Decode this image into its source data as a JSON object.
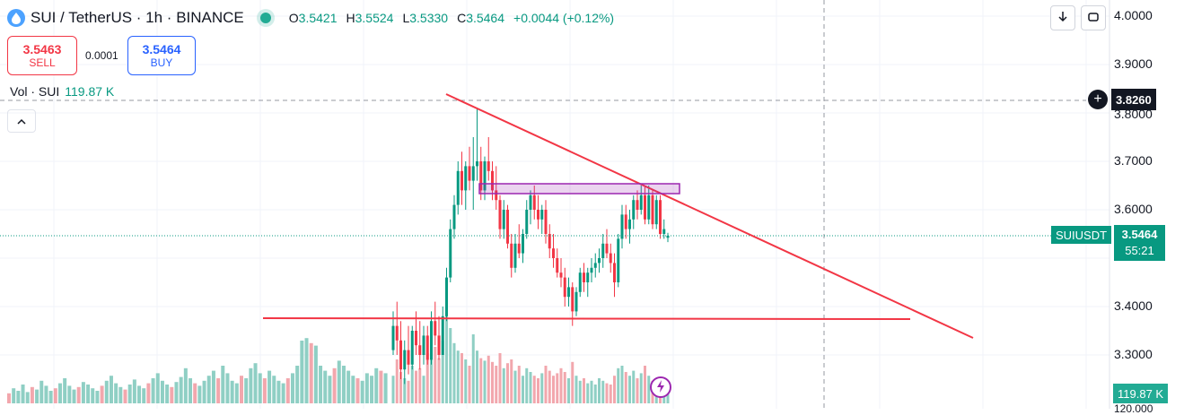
{
  "header": {
    "symbol": "SUI / TetherUS · 1h · BINANCE",
    "ohlc": [
      {
        "k": "O",
        "v": "3.5421"
      },
      {
        "k": "H",
        "v": "3.5524"
      },
      {
        "k": "L",
        "v": "3.5330"
      },
      {
        "k": "C",
        "v": "3.5464"
      }
    ],
    "change": "+0.0044 (+0.12%)"
  },
  "trade": {
    "sell_price": "3.5463",
    "sell_label": "SELL",
    "spread": "0.0001",
    "buy_price": "3.5464",
    "buy_label": "BUY"
  },
  "volume": {
    "label": "Vol · SUI",
    "value": "119.87 K"
  },
  "price_scale": {
    "labels": [
      "4.0000",
      "3.9000",
      "3.8000",
      "3.7000",
      "3.6000",
      "3.4000",
      "3.3000"
    ],
    "crosshair_price": "3.8260",
    "current_price": "3.5464",
    "countdown": "55:21",
    "symbol_tag": "SUIUSDT",
    "volume_tag": "119.87 K",
    "partial_bottom": "120.000"
  },
  "colors": {
    "up": "#089981",
    "down": "#f23645",
    "up_vol": "#8fcfc4",
    "down_vol": "#f2a7ad",
    "trendline": "#f23645",
    "zone": "#9c27b0"
  },
  "icons": {
    "download": "download-icon",
    "fullscreen": "fullscreen-icon",
    "collapse": "chevron-up-icon",
    "add": "plus-circle-icon",
    "bolt": "lightning-icon"
  },
  "chart_data": {
    "type": "candlestick",
    "symbol": "SUIUSDT",
    "interval": "1h",
    "ylim": [
      3.22,
      4.05
    ],
    "candles": [
      [
        3.31,
        3.39,
        3.3,
        3.36
      ],
      [
        3.36,
        3.41,
        3.3,
        3.33
      ],
      [
        3.33,
        3.37,
        3.25,
        3.27
      ],
      [
        3.27,
        3.33,
        3.24,
        3.31
      ],
      [
        3.31,
        3.36,
        3.26,
        3.28
      ],
      [
        3.28,
        3.36,
        3.27,
        3.35
      ],
      [
        3.35,
        3.39,
        3.3,
        3.32
      ],
      [
        3.32,
        3.37,
        3.27,
        3.3
      ],
      [
        3.3,
        3.36,
        3.28,
        3.34
      ],
      [
        3.34,
        3.36,
        3.28,
        3.29
      ],
      [
        3.29,
        3.39,
        3.28,
        3.37
      ],
      [
        3.37,
        3.41,
        3.32,
        3.34
      ],
      [
        3.34,
        3.38,
        3.29,
        3.3
      ],
      [
        3.3,
        3.4,
        3.3,
        3.38
      ],
      [
        3.38,
        3.48,
        3.37,
        3.46
      ],
      [
        3.46,
        3.58,
        3.45,
        3.56
      ],
      [
        3.56,
        3.63,
        3.54,
        3.61
      ],
      [
        3.61,
        3.7,
        3.59,
        3.68
      ],
      [
        3.68,
        3.72,
        3.61,
        3.64
      ],
      [
        3.64,
        3.7,
        3.6,
        3.69
      ],
      [
        3.69,
        3.73,
        3.64,
        3.66
      ],
      [
        3.66,
        3.75,
        3.6,
        3.69
      ],
      [
        3.69,
        3.81,
        3.66,
        3.7
      ],
      [
        3.7,
        3.73,
        3.62,
        3.64
      ],
      [
        3.64,
        3.71,
        3.62,
        3.7
      ],
      [
        3.7,
        3.75,
        3.66,
        3.68
      ],
      [
        3.68,
        3.7,
        3.62,
        3.64
      ],
      [
        3.64,
        3.69,
        3.6,
        3.62
      ],
      [
        3.62,
        3.63,
        3.54,
        3.56
      ],
      [
        3.56,
        3.62,
        3.54,
        3.6
      ],
      [
        3.6,
        3.61,
        3.52,
        3.53
      ],
      [
        3.53,
        3.55,
        3.46,
        3.48
      ],
      [
        3.48,
        3.55,
        3.47,
        3.53
      ],
      [
        3.53,
        3.57,
        3.5,
        3.51
      ],
      [
        3.51,
        3.56,
        3.49,
        3.55
      ],
      [
        3.55,
        3.62,
        3.54,
        3.6
      ],
      [
        3.6,
        3.64,
        3.57,
        3.63
      ],
      [
        3.63,
        3.65,
        3.58,
        3.6
      ],
      [
        3.6,
        3.63,
        3.56,
        3.58
      ],
      [
        3.58,
        3.61,
        3.55,
        3.6
      ],
      [
        3.6,
        3.62,
        3.53,
        3.55
      ],
      [
        3.55,
        3.57,
        3.5,
        3.52
      ],
      [
        3.52,
        3.55,
        3.48,
        3.5
      ],
      [
        3.5,
        3.52,
        3.46,
        3.47
      ],
      [
        3.47,
        3.5,
        3.44,
        3.46
      ],
      [
        3.46,
        3.48,
        3.4,
        3.42
      ],
      [
        3.42,
        3.46,
        3.4,
        3.44
      ],
      [
        3.44,
        3.45,
        3.36,
        3.39
      ],
      [
        3.39,
        3.44,
        3.38,
        3.43
      ],
      [
        3.43,
        3.48,
        3.42,
        3.47
      ],
      [
        3.47,
        3.49,
        3.43,
        3.45
      ],
      [
        3.45,
        3.48,
        3.42,
        3.47
      ],
      [
        3.47,
        3.5,
        3.45,
        3.48
      ],
      [
        3.48,
        3.51,
        3.46,
        3.49
      ],
      [
        3.49,
        3.52,
        3.47,
        3.5
      ],
      [
        3.5,
        3.55,
        3.48,
        3.53
      ],
      [
        3.53,
        3.56,
        3.5,
        3.51
      ],
      [
        3.51,
        3.53,
        3.47,
        3.49
      ],
      [
        3.49,
        3.51,
        3.42,
        3.45
      ],
      [
        3.45,
        3.55,
        3.44,
        3.54
      ],
      [
        3.54,
        3.61,
        3.52,
        3.59
      ],
      [
        3.59,
        3.61,
        3.54,
        3.56
      ],
      [
        3.56,
        3.6,
        3.53,
        3.58
      ],
      [
        3.58,
        3.63,
        3.56,
        3.62
      ],
      [
        3.62,
        3.64,
        3.58,
        3.6
      ],
      [
        3.6,
        3.65,
        3.59,
        3.63
      ],
      [
        3.63,
        3.65,
        3.57,
        3.58
      ],
      [
        3.58,
        3.65,
        3.57,
        3.63
      ],
      [
        3.63,
        3.64,
        3.56,
        3.57
      ],
      [
        3.57,
        3.63,
        3.56,
        3.62
      ],
      [
        3.62,
        3.63,
        3.54,
        3.55
      ],
      [
        3.55,
        3.58,
        3.54,
        3.56
      ],
      [
        3.5421,
        3.5524,
        3.533,
        3.5464
      ]
    ],
    "volume": [
      0.22,
      0.35,
      0.25,
      0.2,
      0.18,
      0.3,
      0.26,
      0.28,
      0.22,
      0.4,
      0.38,
      0.45,
      0.36,
      0.5,
      0.72,
      0.6,
      0.48,
      0.42,
      0.4,
      0.35,
      0.3,
      0.55,
      0.42,
      0.36,
      0.34,
      0.38,
      0.33,
      0.3,
      0.4,
      0.28,
      0.32,
      0.35,
      0.26,
      0.3,
      0.22,
      0.28,
      0.25,
      0.22,
      0.2,
      0.24,
      0.3,
      0.26,
      0.22,
      0.24,
      0.28,
      0.25,
      0.2,
      0.33,
      0.22,
      0.18,
      0.2,
      0.16,
      0.18,
      0.15,
      0.2,
      0.18,
      0.16,
      0.15,
      0.22,
      0.28,
      0.3,
      0.25,
      0.22,
      0.26,
      0.2,
      0.24,
      0.3,
      0.22,
      0.18,
      0.2,
      0.16,
      0.14,
      0.1
    ],
    "history_volume": [
      0.08,
      0.12,
      0.1,
      0.15,
      0.09,
      0.13,
      0.11,
      0.18,
      0.14,
      0.1,
      0.12,
      0.16,
      0.2,
      0.14,
      0.11,
      0.13,
      0.17,
      0.15,
      0.12,
      0.1,
      0.14,
      0.18,
      0.22,
      0.16,
      0.13,
      0.11,
      0.15,
      0.19,
      0.14,
      0.12,
      0.16,
      0.2,
      0.24,
      0.18,
      0.15,
      0.13,
      0.17,
      0.21,
      0.28,
      0.2,
      0.16,
      0.14,
      0.18,
      0.22,
      0.26,
      0.2,
      0.3,
      0.24,
      0.18,
      0.16,
      0.22,
      0.2,
      0.28,
      0.32,
      0.24,
      0.2,
      0.26,
      0.22,
      0.18,
      0.16,
      0.2,
      0.24,
      0.3,
      0.5,
      0.52,
      0.48,
      0.46,
      0.3,
      0.26,
      0.22,
      0.28,
      0.34,
      0.3,
      0.26,
      0.22,
      0.2,
      0.18,
      0.24,
      0.22,
      0.28,
      0.26,
      0.24
    ]
  }
}
